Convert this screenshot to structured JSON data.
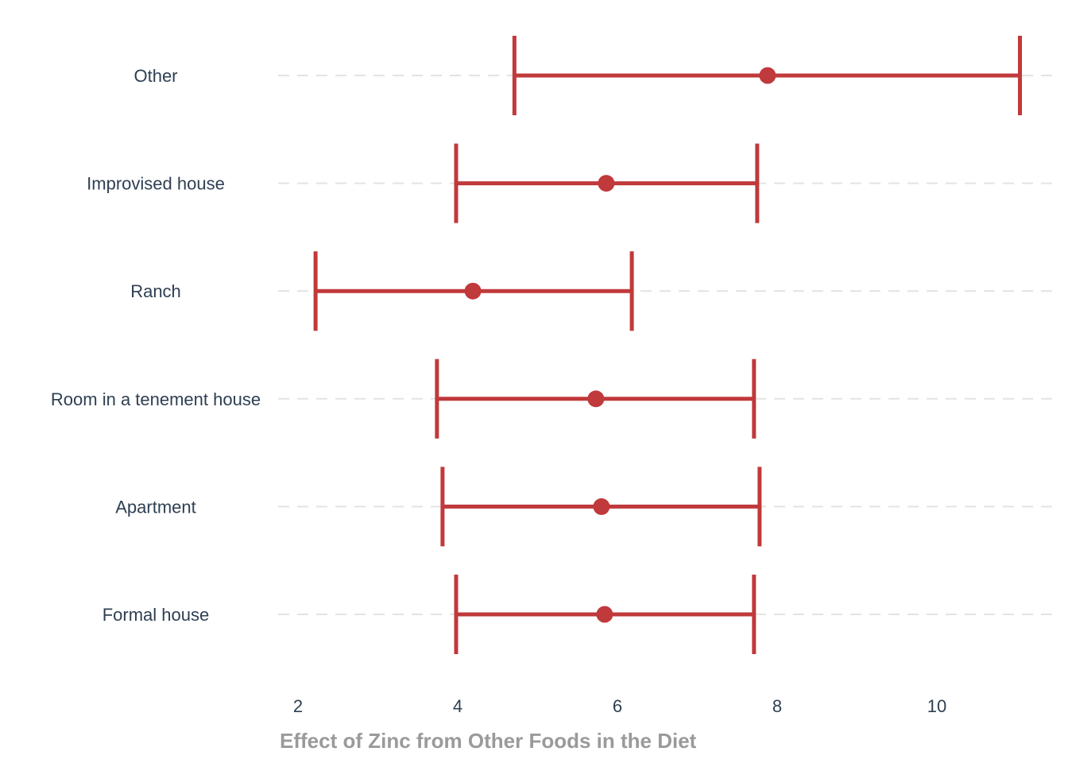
{
  "chart_data": {
    "type": "errorbar",
    "orientation": "horizontal",
    "xlabel": "Effect of Zinc from Other Foods in the Diet",
    "ylabel": "",
    "xlim": [
      1.75,
      11.4
    ],
    "xticks": [
      2,
      4,
      6,
      8,
      10
    ],
    "grid": "horizontal dashed",
    "color": "#c0393b",
    "categories": [
      "Other",
      "Improvised house",
      "Ranch",
      "Room in a tenement house",
      "Apartment",
      "Formal house"
    ],
    "estimate": [
      7.88,
      5.86,
      4.19,
      5.73,
      5.8,
      5.84
    ],
    "lower": [
      4.71,
      3.98,
      2.22,
      3.74,
      3.81,
      3.98
    ],
    "upper": [
      11.04,
      7.75,
      6.18,
      7.71,
      7.78,
      7.71
    ]
  }
}
